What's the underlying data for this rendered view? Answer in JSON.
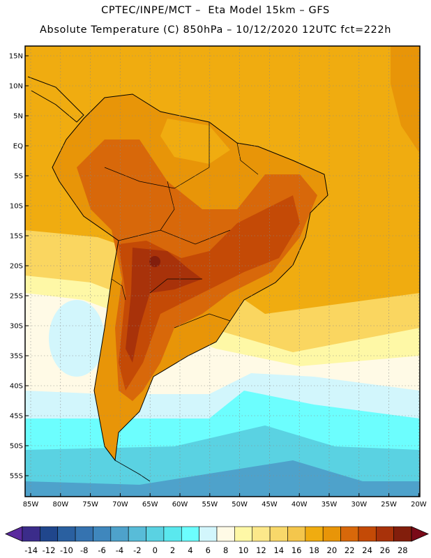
{
  "header": {
    "line1": "CPTEC/INPE/MCT –  Eta Model 15km – GFS",
    "line2": "Absolute Temperature (C) 850hPa – 10/12/2020 12UTC fct=222h"
  },
  "axes": {
    "lat_labels": [
      "15N",
      "10N",
      "5N",
      "EQ",
      "5S",
      "10S",
      "15S",
      "20S",
      "25S",
      "30S",
      "35S",
      "40S",
      "45S",
      "50S",
      "55S"
    ],
    "lon_labels": [
      "85W",
      "80W",
      "75W",
      "70W",
      "65W",
      "60W",
      "55W",
      "50W",
      "45W",
      "40W",
      "35W",
      "30W",
      "25W",
      "20W"
    ]
  },
  "colorbar": {
    "labels": [
      "-14",
      "-12",
      "-10",
      "-8",
      "-6",
      "-4",
      "-2",
      "0",
      "2",
      "4",
      "6",
      "8",
      "10",
      "12",
      "14",
      "16",
      "18",
      "20",
      "22",
      "24",
      "26",
      "28"
    ],
    "colors": [
      "#3b2c8a",
      "#20468c",
      "#2a60a0",
      "#3573b0",
      "#3f87bd",
      "#4ea2cb",
      "#58bcd8",
      "#5ad2e2",
      "#5ae8ee",
      "#6cfefe",
      "#d2f6fc",
      "#fffae6",
      "#fef8a6",
      "#fce88a",
      "#f8d86a",
      "#f4c64c",
      "#f0ac10",
      "#e89508",
      "#d8680a",
      "#c44a06",
      "#a8320a",
      "#821e0c"
    ],
    "under_color": "#5a2a9e",
    "over_color": "#7a0a18"
  },
  "map": {
    "ocean_colors": {
      "warm": "#f0ac10",
      "light": "#fad660",
      "pale": "#fef8a6",
      "cream": "#fffae6",
      "ice": "#d2f6fc",
      "cyan": "#6cfefe",
      "teal": "#5ad2e2",
      "blue": "#4ea2cb"
    },
    "land_colors": {
      "base": "#e89508",
      "hot": "#d8680a",
      "hotter": "#c44a06",
      "hottest": "#a8320a",
      "peak": "#821e0c",
      "cool": "#f0ac10"
    }
  }
}
